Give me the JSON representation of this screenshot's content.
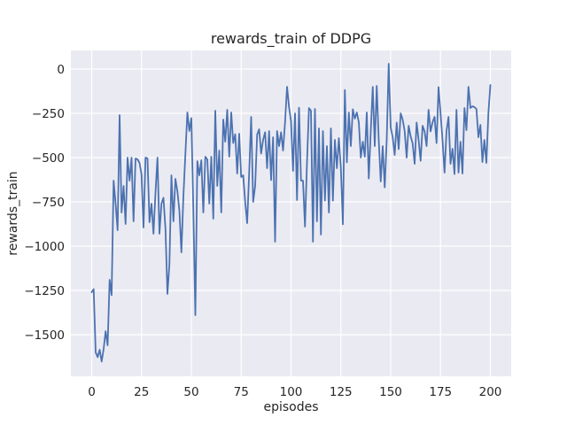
{
  "figure": {
    "background": "#ffffff"
  },
  "chart_data": {
    "type": "line",
    "title": "rewards_train of DDPG",
    "xlabel": "episodes",
    "ylabel": "rewards_train",
    "x_ticks": [
      0,
      25,
      50,
      75,
      100,
      125,
      150,
      175,
      200
    ],
    "y_ticks": [
      0,
      -250,
      -500,
      -750,
      -1000,
      -1250,
      -1500
    ],
    "xlim": [
      -10.44,
      210.44
    ],
    "ylim": [
      -1735,
      105
    ],
    "grid": true,
    "legend": "none",
    "style": {
      "axes_background": "#eaeaf2",
      "grid_color": "#ffffff",
      "line_color": "#4c72b0",
      "text_color": "#262626",
      "line_width": 1.8
    },
    "series": [
      {
        "name": "rewards_train",
        "x_start": 0,
        "x_step": 1,
        "values": [
          -1260,
          -1243,
          -1600,
          -1627,
          -1585,
          -1652,
          -1580,
          -1480,
          -1560,
          -1190,
          -1277,
          -630,
          -760,
          -910,
          -260,
          -810,
          -660,
          -875,
          -500,
          -630,
          -500,
          -860,
          -505,
          -510,
          -530,
          -595,
          -895,
          -500,
          -505,
          -865,
          -760,
          -930,
          -700,
          -500,
          -930,
          -760,
          -727,
          -900,
          -1270,
          -1100,
          -600,
          -860,
          -620,
          -690,
          -800,
          -1035,
          -720,
          -480,
          -245,
          -350,
          -277,
          -800,
          -1390,
          -520,
          -600,
          -515,
          -810,
          -495,
          -510,
          -760,
          -495,
          -845,
          -235,
          -660,
          -460,
          -810,
          -285,
          -410,
          -230,
          -495,
          -245,
          -418,
          -368,
          -590,
          -365,
          -610,
          -600,
          -750,
          -870,
          -585,
          -270,
          -750,
          -660,
          -370,
          -340,
          -477,
          -400,
          -357,
          -560,
          -350,
          -627,
          -385,
          -975,
          -350,
          -435,
          -357,
          -460,
          -301,
          -100,
          -215,
          -295,
          -575,
          -250,
          -740,
          -218,
          -630,
          -630,
          -890,
          -530,
          -220,
          -235,
          -975,
          -225,
          -860,
          -335,
          -935,
          -350,
          -743,
          -435,
          -810,
          -335,
          -743,
          -400,
          -560,
          -390,
          -560,
          -877,
          -118,
          -527,
          -245,
          -435,
          -227,
          -280,
          -245,
          -300,
          -500,
          -410,
          -495,
          -245,
          -618,
          -350,
          -101,
          -435,
          -95,
          -400,
          -635,
          -435,
          -668,
          -400,
          30,
          -330,
          -385,
          -485,
          -302,
          -452,
          -250,
          -285,
          -350,
          -500,
          -320,
          -380,
          -420,
          -535,
          -302,
          -400,
          -518,
          -320,
          -352,
          -435,
          -230,
          -352,
          -300,
          -270,
          -418,
          -102,
          -250,
          -402,
          -585,
          -350,
          -270,
          -535,
          -450,
          -593,
          -230,
          -585,
          -410,
          -590,
          -220,
          -345,
          -100,
          -220,
          -210,
          -215,
          -225,
          -385,
          -315,
          -525,
          -400,
          -530,
          -250,
          -90
        ]
      }
    ]
  }
}
